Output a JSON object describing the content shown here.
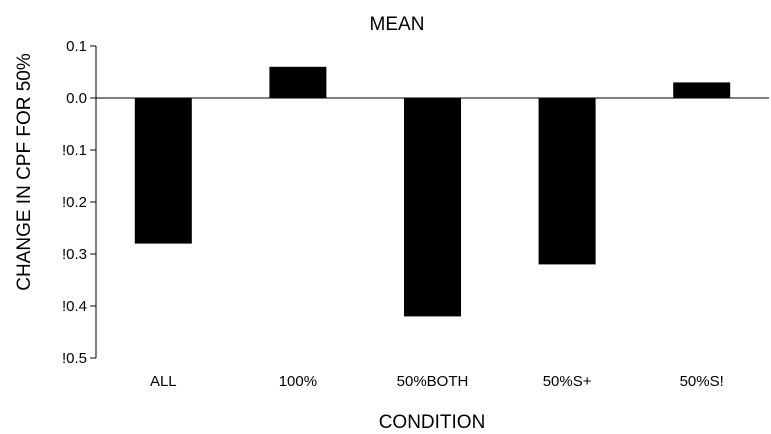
{
  "chart_data": {
    "type": "bar",
    "title": "MEAN",
    "xlabel": "CONDITION",
    "ylabel": "CHANGE IN CPF FOR 50%",
    "categories": [
      "ALL",
      "100%",
      "50%BOTH",
      "50%S+",
      "50%S!"
    ],
    "values": [
      -0.28,
      0.06,
      -0.42,
      -0.32,
      0.03
    ],
    "ylim": [
      -0.5,
      0.1
    ],
    "yticks": [
      0.1,
      0.0,
      -0.1,
      -0.2,
      -0.3,
      -0.4,
      -0.5
    ],
    "ytick_labels": [
      "0.1",
      "0.0",
      "!0.1",
      "!0.2",
      "!0.3",
      "!0.4",
      "!0.5"
    ],
    "grid": false,
    "legend": "none",
    "bar_color": "#000000"
  }
}
